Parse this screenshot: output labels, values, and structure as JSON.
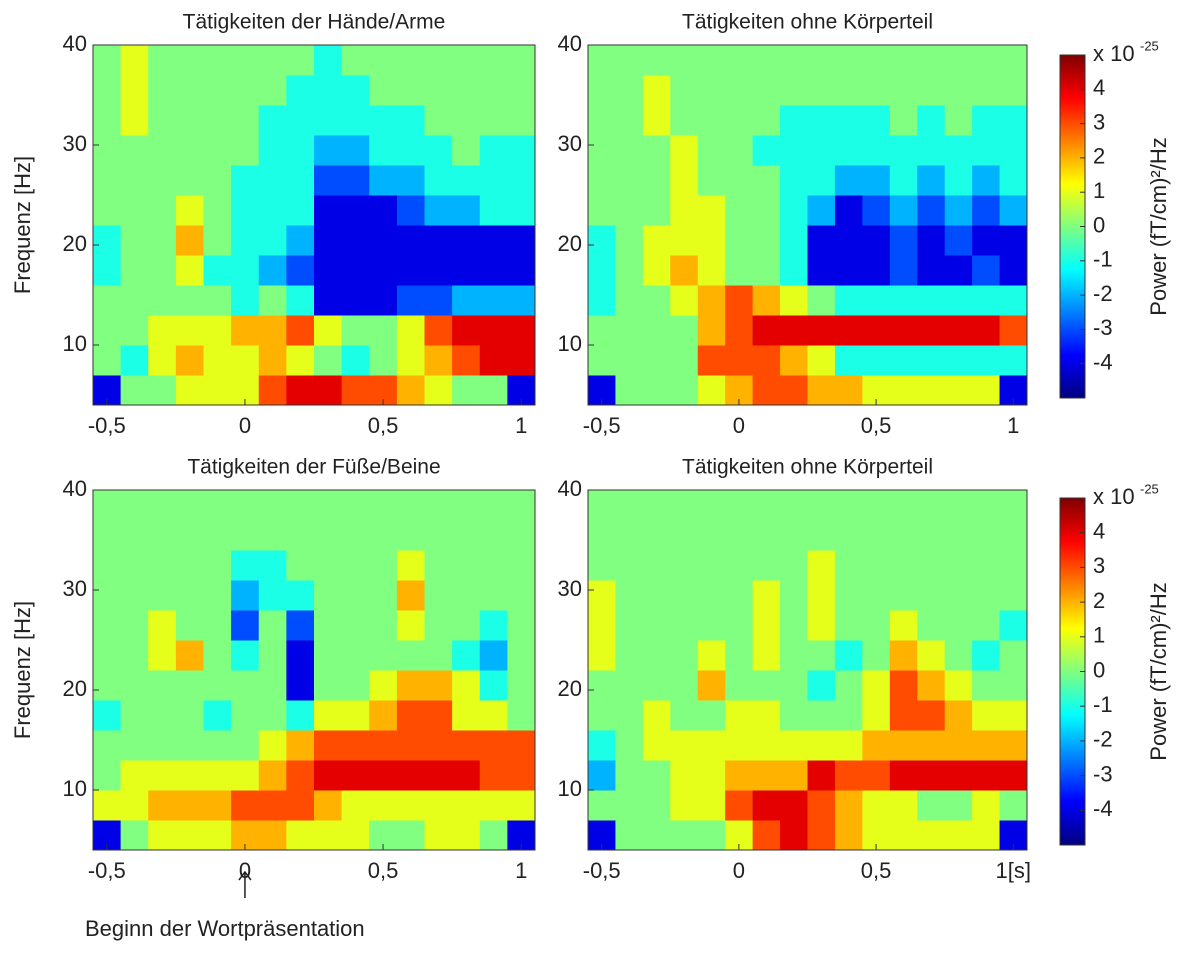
{
  "chart_data": [
    {
      "type": "heatmap",
      "title": "Tätigkeiten der Hände/Arme",
      "ylabel": "Frequenz [Hz]",
      "colormap": "jet",
      "clim": [
        -5,
        5
      ],
      "xbins": [
        -0.55,
        -0.45,
        -0.35,
        -0.25,
        -0.15,
        -0.05,
        0.05,
        0.15,
        0.25,
        0.35,
        0.45,
        0.55,
        0.65,
        0.75,
        0.85,
        0.95,
        1.05
      ],
      "ybins": [
        4,
        7,
        10,
        13,
        16,
        19,
        22,
        25,
        28,
        31,
        34,
        37,
        40
      ],
      "xlim": [
        -0.55,
        1.05
      ],
      "ylim": [
        4,
        40
      ],
      "xticks": [
        {
          "value": -0.5,
          "label": "-0,5"
        },
        0,
        {
          "value": 0.5,
          "label": "0,5"
        },
        1
      ],
      "yticks": [
        10,
        20,
        30,
        40
      ],
      "values": [
        [
          -4,
          0,
          0,
          1,
          1,
          1,
          3,
          4,
          4,
          3,
          3,
          2,
          1,
          0,
          0,
          -4
        ],
        [
          0,
          -1,
          1,
          2,
          1,
          1,
          2,
          1,
          0,
          -1,
          0,
          1,
          2,
          3,
          4,
          4
        ],
        [
          0,
          0,
          1,
          1,
          1,
          2,
          2,
          3,
          1,
          0,
          0,
          1,
          3,
          4,
          4,
          4
        ],
        [
          0,
          0,
          0,
          0,
          0,
          -1,
          0,
          -1,
          -4,
          -4,
          -4,
          -3,
          -3,
          -2,
          -2,
          -2
        ],
        [
          -1,
          0,
          0,
          1,
          -1,
          -1,
          -2,
          -3,
          -4,
          -4,
          -4,
          -4,
          -4,
          -4,
          -4,
          -4
        ],
        [
          -1,
          0,
          0,
          2,
          0,
          -1,
          -1,
          -2,
          -4,
          -4,
          -4,
          -4,
          -4,
          -4,
          -4,
          -4
        ],
        [
          0,
          0,
          0,
          1,
          0,
          -1,
          -1,
          -1,
          -4,
          -4,
          -4,
          -3,
          -2,
          -2,
          -1,
          -1
        ],
        [
          0,
          0,
          0,
          0,
          0,
          -1,
          -1,
          -1,
          -3,
          -3,
          -2,
          -2,
          -1,
          -1,
          -1,
          -1
        ],
        [
          0,
          0,
          0,
          0,
          0,
          0,
          -1,
          -1,
          -2,
          -2,
          -1,
          -1,
          -1,
          0,
          -1,
          -1
        ],
        [
          0,
          1,
          0,
          0,
          0,
          0,
          -1,
          -1,
          -1,
          -1,
          -1,
          -1,
          0,
          0,
          0,
          0
        ],
        [
          0,
          1,
          0,
          0,
          0,
          0,
          0,
          -1,
          -1,
          -1,
          0,
          0,
          0,
          0,
          0,
          0
        ],
        [
          0,
          1,
          0,
          0,
          0,
          0,
          0,
          0,
          -1,
          0,
          0,
          0,
          0,
          0,
          0,
          0
        ]
      ]
    },
    {
      "type": "heatmap",
      "title": "Tätigkeiten ohne Körperteil",
      "colormap": "jet",
      "clim": [
        -5,
        5
      ],
      "xbins": [
        -0.55,
        -0.45,
        -0.35,
        -0.25,
        -0.15,
        -0.05,
        0.05,
        0.15,
        0.25,
        0.35,
        0.45,
        0.55,
        0.65,
        0.75,
        0.85,
        0.95,
        1.05
      ],
      "ybins": [
        4,
        7,
        10,
        13,
        16,
        19,
        22,
        25,
        28,
        31,
        34,
        37,
        40
      ],
      "xlim": [
        -0.55,
        1.05
      ],
      "ylim": [
        4,
        40
      ],
      "xticks": [
        {
          "value": -0.5,
          "label": "-0,5"
        },
        0,
        {
          "value": 0.5,
          "label": "0,5"
        },
        1
      ],
      "yticks": [
        10,
        20,
        30,
        40
      ],
      "colorbar": {
        "scale_label": "x 10",
        "scale_exponent": "-25",
        "label": "Power (fT/cm)²/Hz",
        "ticks": [
          4,
          3,
          2,
          1,
          0,
          -1,
          -2,
          -3,
          -4
        ]
      },
      "values": [
        [
          -4,
          0,
          0,
          0,
          1,
          2,
          3,
          3,
          2,
          2,
          1,
          1,
          1,
          1,
          1,
          -4
        ],
        [
          0,
          0,
          0,
          0,
          3,
          3,
          3,
          2,
          1,
          -1,
          -1,
          -1,
          -1,
          -1,
          -1,
          -1
        ],
        [
          0,
          0,
          0,
          0,
          2,
          3,
          4,
          4,
          4,
          4,
          4,
          4,
          4,
          4,
          4,
          3
        ],
        [
          -1,
          0,
          0,
          1,
          2,
          3,
          2,
          1,
          0,
          -1,
          -1,
          -1,
          -1,
          -1,
          -1,
          -1
        ],
        [
          -1,
          0,
          1,
          2,
          1,
          0,
          0,
          -1,
          -4,
          -4,
          -4,
          -3,
          -4,
          -4,
          -3,
          -4
        ],
        [
          -1,
          0,
          1,
          1,
          1,
          0,
          0,
          -1,
          -4,
          -4,
          -4,
          -3,
          -4,
          -3,
          -4,
          -4
        ],
        [
          0,
          0,
          0,
          1,
          1,
          0,
          0,
          -1,
          -2,
          -4,
          -3,
          -2,
          -3,
          -2,
          -3,
          -2
        ],
        [
          0,
          0,
          0,
          1,
          0,
          0,
          0,
          -1,
          -1,
          -2,
          -2,
          -1,
          -2,
          -1,
          -2,
          -1
        ],
        [
          0,
          0,
          0,
          1,
          0,
          0,
          -1,
          -1,
          -1,
          -1,
          -1,
          -1,
          -1,
          -1,
          -1,
          -1
        ],
        [
          0,
          0,
          1,
          0,
          0,
          0,
          0,
          -1,
          -1,
          -1,
          -1,
          0,
          -1,
          0,
          -1,
          -1
        ],
        [
          0,
          0,
          1,
          0,
          0,
          0,
          0,
          0,
          0,
          0,
          0,
          0,
          0,
          0,
          0,
          0
        ],
        [
          0,
          0,
          0,
          0,
          0,
          0,
          0,
          0,
          0,
          0,
          0,
          0,
          0,
          0,
          0,
          0
        ]
      ]
    },
    {
      "type": "heatmap",
      "title": "Tätigkeiten der Füße/Beine",
      "ylabel": "Frequenz [Hz]",
      "colormap": "jet",
      "clim": [
        -5,
        5
      ],
      "annotation": "Beginn der Wortpräsentation",
      "xbins": [
        -0.55,
        -0.45,
        -0.35,
        -0.25,
        -0.15,
        -0.05,
        0.05,
        0.15,
        0.25,
        0.35,
        0.45,
        0.55,
        0.65,
        0.75,
        0.85,
        0.95,
        1.05
      ],
      "ybins": [
        4,
        7,
        10,
        13,
        16,
        19,
        22,
        25,
        28,
        31,
        34,
        37,
        40
      ],
      "xlim": [
        -0.55,
        1.05
      ],
      "ylim": [
        4,
        40
      ],
      "xticks": [
        {
          "value": -0.5,
          "label": "-0,5"
        },
        0,
        {
          "value": 0.5,
          "label": "0,5"
        },
        1
      ],
      "yticks": [
        10,
        20,
        30,
        40
      ],
      "values": [
        [
          -4,
          0,
          1,
          1,
          1,
          2,
          2,
          1,
          1,
          1,
          0,
          0,
          1,
          1,
          0,
          -4
        ],
        [
          1,
          1,
          2,
          2,
          2,
          3,
          3,
          3,
          2,
          1,
          1,
          1,
          1,
          1,
          1,
          1
        ],
        [
          0,
          1,
          1,
          1,
          1,
          1,
          2,
          3,
          4,
          4,
          4,
          4,
          4,
          4,
          3,
          3
        ],
        [
          0,
          0,
          0,
          0,
          0,
          0,
          1,
          2,
          3,
          3,
          3,
          3,
          3,
          3,
          3,
          3
        ],
        [
          -1,
          0,
          0,
          0,
          -1,
          0,
          0,
          -1,
          1,
          1,
          2,
          3,
          3,
          1,
          1,
          0
        ],
        [
          0,
          0,
          0,
          0,
          0,
          0,
          0,
          -4,
          0,
          0,
          1,
          2,
          2,
          1,
          -1,
          0
        ],
        [
          0,
          0,
          1,
          2,
          0,
          -1,
          0,
          -4,
          0,
          0,
          0,
          0,
          0,
          -1,
          -2,
          0
        ],
        [
          0,
          0,
          1,
          0,
          0,
          -3,
          0,
          -3,
          0,
          0,
          0,
          1,
          0,
          0,
          -1,
          0
        ],
        [
          0,
          0,
          0,
          0,
          0,
          -2,
          -1,
          -1,
          0,
          0,
          0,
          2,
          0,
          0,
          0,
          0
        ],
        [
          0,
          0,
          0,
          0,
          0,
          -1,
          -1,
          0,
          0,
          0,
          0,
          1,
          0,
          0,
          0,
          0
        ],
        [
          0,
          0,
          0,
          0,
          0,
          0,
          0,
          0,
          0,
          0,
          0,
          0,
          0,
          0,
          0,
          0
        ],
        [
          0,
          0,
          0,
          0,
          0,
          0,
          0,
          0,
          0,
          0,
          0,
          0,
          0,
          0,
          0,
          0
        ]
      ]
    },
    {
      "type": "heatmap",
      "title": "Tätigkeiten ohne Körperteil",
      "colormap": "jet",
      "clim": [
        -5,
        5
      ],
      "xbins": [
        -0.55,
        -0.45,
        -0.35,
        -0.25,
        -0.15,
        -0.05,
        0.05,
        0.15,
        0.25,
        0.35,
        0.45,
        0.55,
        0.65,
        0.75,
        0.85,
        0.95,
        1.05
      ],
      "ybins": [
        4,
        7,
        10,
        13,
        16,
        19,
        22,
        25,
        28,
        31,
        34,
        37,
        40
      ],
      "xlim": [
        -0.55,
        1.05
      ],
      "ylim": [
        4,
        40
      ],
      "xticks": [
        {
          "value": -0.5,
          "label": "-0,5"
        },
        0,
        {
          "value": 0.5,
          "label": "0,5"
        },
        {
          "value": 1,
          "label": "1[s]"
        }
      ],
      "yticks": [
        10,
        20,
        30,
        40
      ],
      "colorbar": {
        "scale_label": "x 10",
        "scale_exponent": "-25",
        "label": "Power (fT/cm)²/Hz",
        "ticks": [
          4,
          3,
          2,
          1,
          0,
          -1,
          -2,
          -3,
          -4
        ]
      },
      "values": [
        [
          -4,
          0,
          0,
          0,
          0,
          1,
          3,
          4,
          3,
          2,
          1,
          1,
          1,
          1,
          1,
          -4
        ],
        [
          0,
          0,
          0,
          1,
          1,
          3,
          4,
          4,
          3,
          2,
          1,
          1,
          0,
          0,
          1,
          0
        ],
        [
          -2,
          0,
          0,
          1,
          1,
          2,
          2,
          2,
          4,
          3,
          3,
          4,
          4,
          4,
          4,
          4
        ],
        [
          -1,
          0,
          1,
          1,
          1,
          1,
          1,
          1,
          1,
          1,
          2,
          2,
          2,
          2,
          2,
          2
        ],
        [
          0,
          0,
          1,
          0,
          0,
          1,
          1,
          0,
          0,
          0,
          1,
          3,
          3,
          2,
          1,
          1
        ],
        [
          0,
          0,
          0,
          0,
          2,
          0,
          0,
          0,
          -1,
          0,
          1,
          3,
          2,
          1,
          0,
          0
        ],
        [
          1,
          0,
          0,
          0,
          1,
          0,
          1,
          0,
          0,
          -1,
          0,
          2,
          1,
          0,
          -1,
          0
        ],
        [
          1,
          0,
          0,
          0,
          0,
          0,
          1,
          0,
          1,
          0,
          0,
          1,
          0,
          0,
          0,
          -1
        ],
        [
          1,
          0,
          0,
          0,
          0,
          0,
          1,
          0,
          1,
          0,
          0,
          0,
          0,
          0,
          0,
          0
        ],
        [
          0,
          0,
          0,
          0,
          0,
          0,
          0,
          0,
          1,
          0,
          0,
          0,
          0,
          0,
          0,
          0
        ],
        [
          0,
          0,
          0,
          0,
          0,
          0,
          0,
          0,
          0,
          0,
          0,
          0,
          0,
          0,
          0,
          0
        ],
        [
          0,
          0,
          0,
          0,
          0,
          0,
          0,
          0,
          0,
          0,
          0,
          0,
          0,
          0,
          0,
          0
        ]
      ]
    }
  ]
}
